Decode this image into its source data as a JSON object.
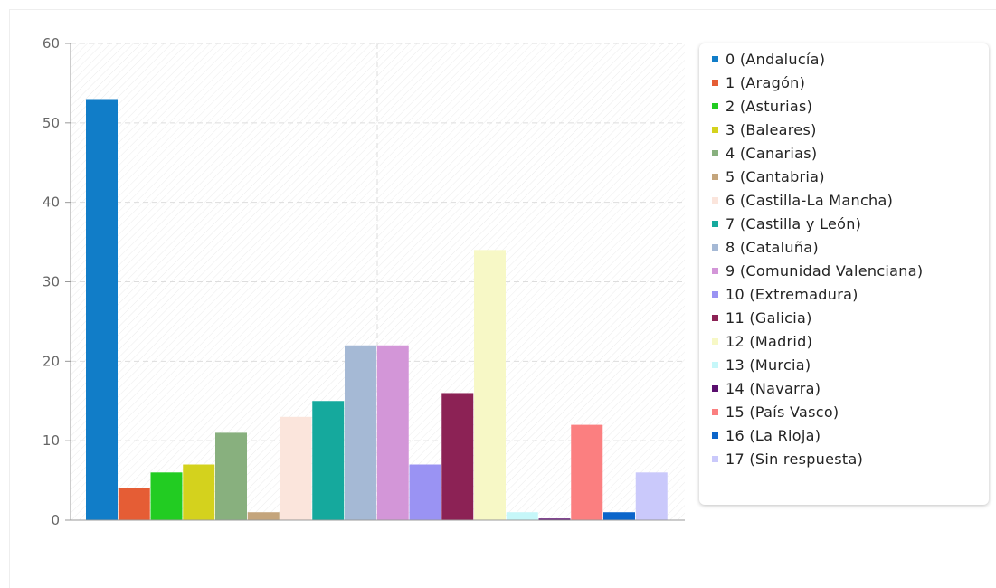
{
  "chart_data": {
    "type": "bar",
    "title": "",
    "xlabel": "",
    "ylabel": "",
    "ylim": [
      0,
      60
    ],
    "yticks": [
      0,
      10,
      20,
      30,
      40,
      50,
      60
    ],
    "yticks_text": [
      "0",
      "10",
      "20",
      "30",
      "40",
      "50",
      "60"
    ],
    "grid": true,
    "legend_position": "right",
    "categories": [
      "0 (Andalucía)",
      "1 (Aragón)",
      "2 (Asturias)",
      "3 (Baleares)",
      "4 (Canarias)",
      "5 (Cantabria)",
      "6 (Castilla-La Mancha)",
      "7 (Castilla y León)",
      "8 (Cataluña)",
      "9 (Comunidad Valenciana)",
      "10 (Extremadura)",
      "11 (Galicia)",
      "12 (Madrid)",
      "13 (Murcia)",
      "14 (Navarra)",
      "15 (País Vasco)",
      "16 (La Rioja)",
      "17 (Sin respuesta)"
    ],
    "values": [
      53,
      4,
      6,
      7,
      11,
      1,
      13,
      15,
      22,
      22,
      7,
      16,
      34,
      1,
      0.2,
      12,
      1,
      6
    ],
    "colors": [
      "#117dc8",
      "#e55d35",
      "#22cc22",
      "#d4d21d",
      "#88b07e",
      "#c4a57c",
      "#fbe5dc",
      "#15a99d",
      "#a5b9d5",
      "#d396d8",
      "#9a93f3",
      "#8c2255",
      "#f7f8c6",
      "#c6f7f9",
      "#5a0f6e",
      "#fb7f80",
      "#0b65ca",
      "#cac9fb"
    ]
  }
}
